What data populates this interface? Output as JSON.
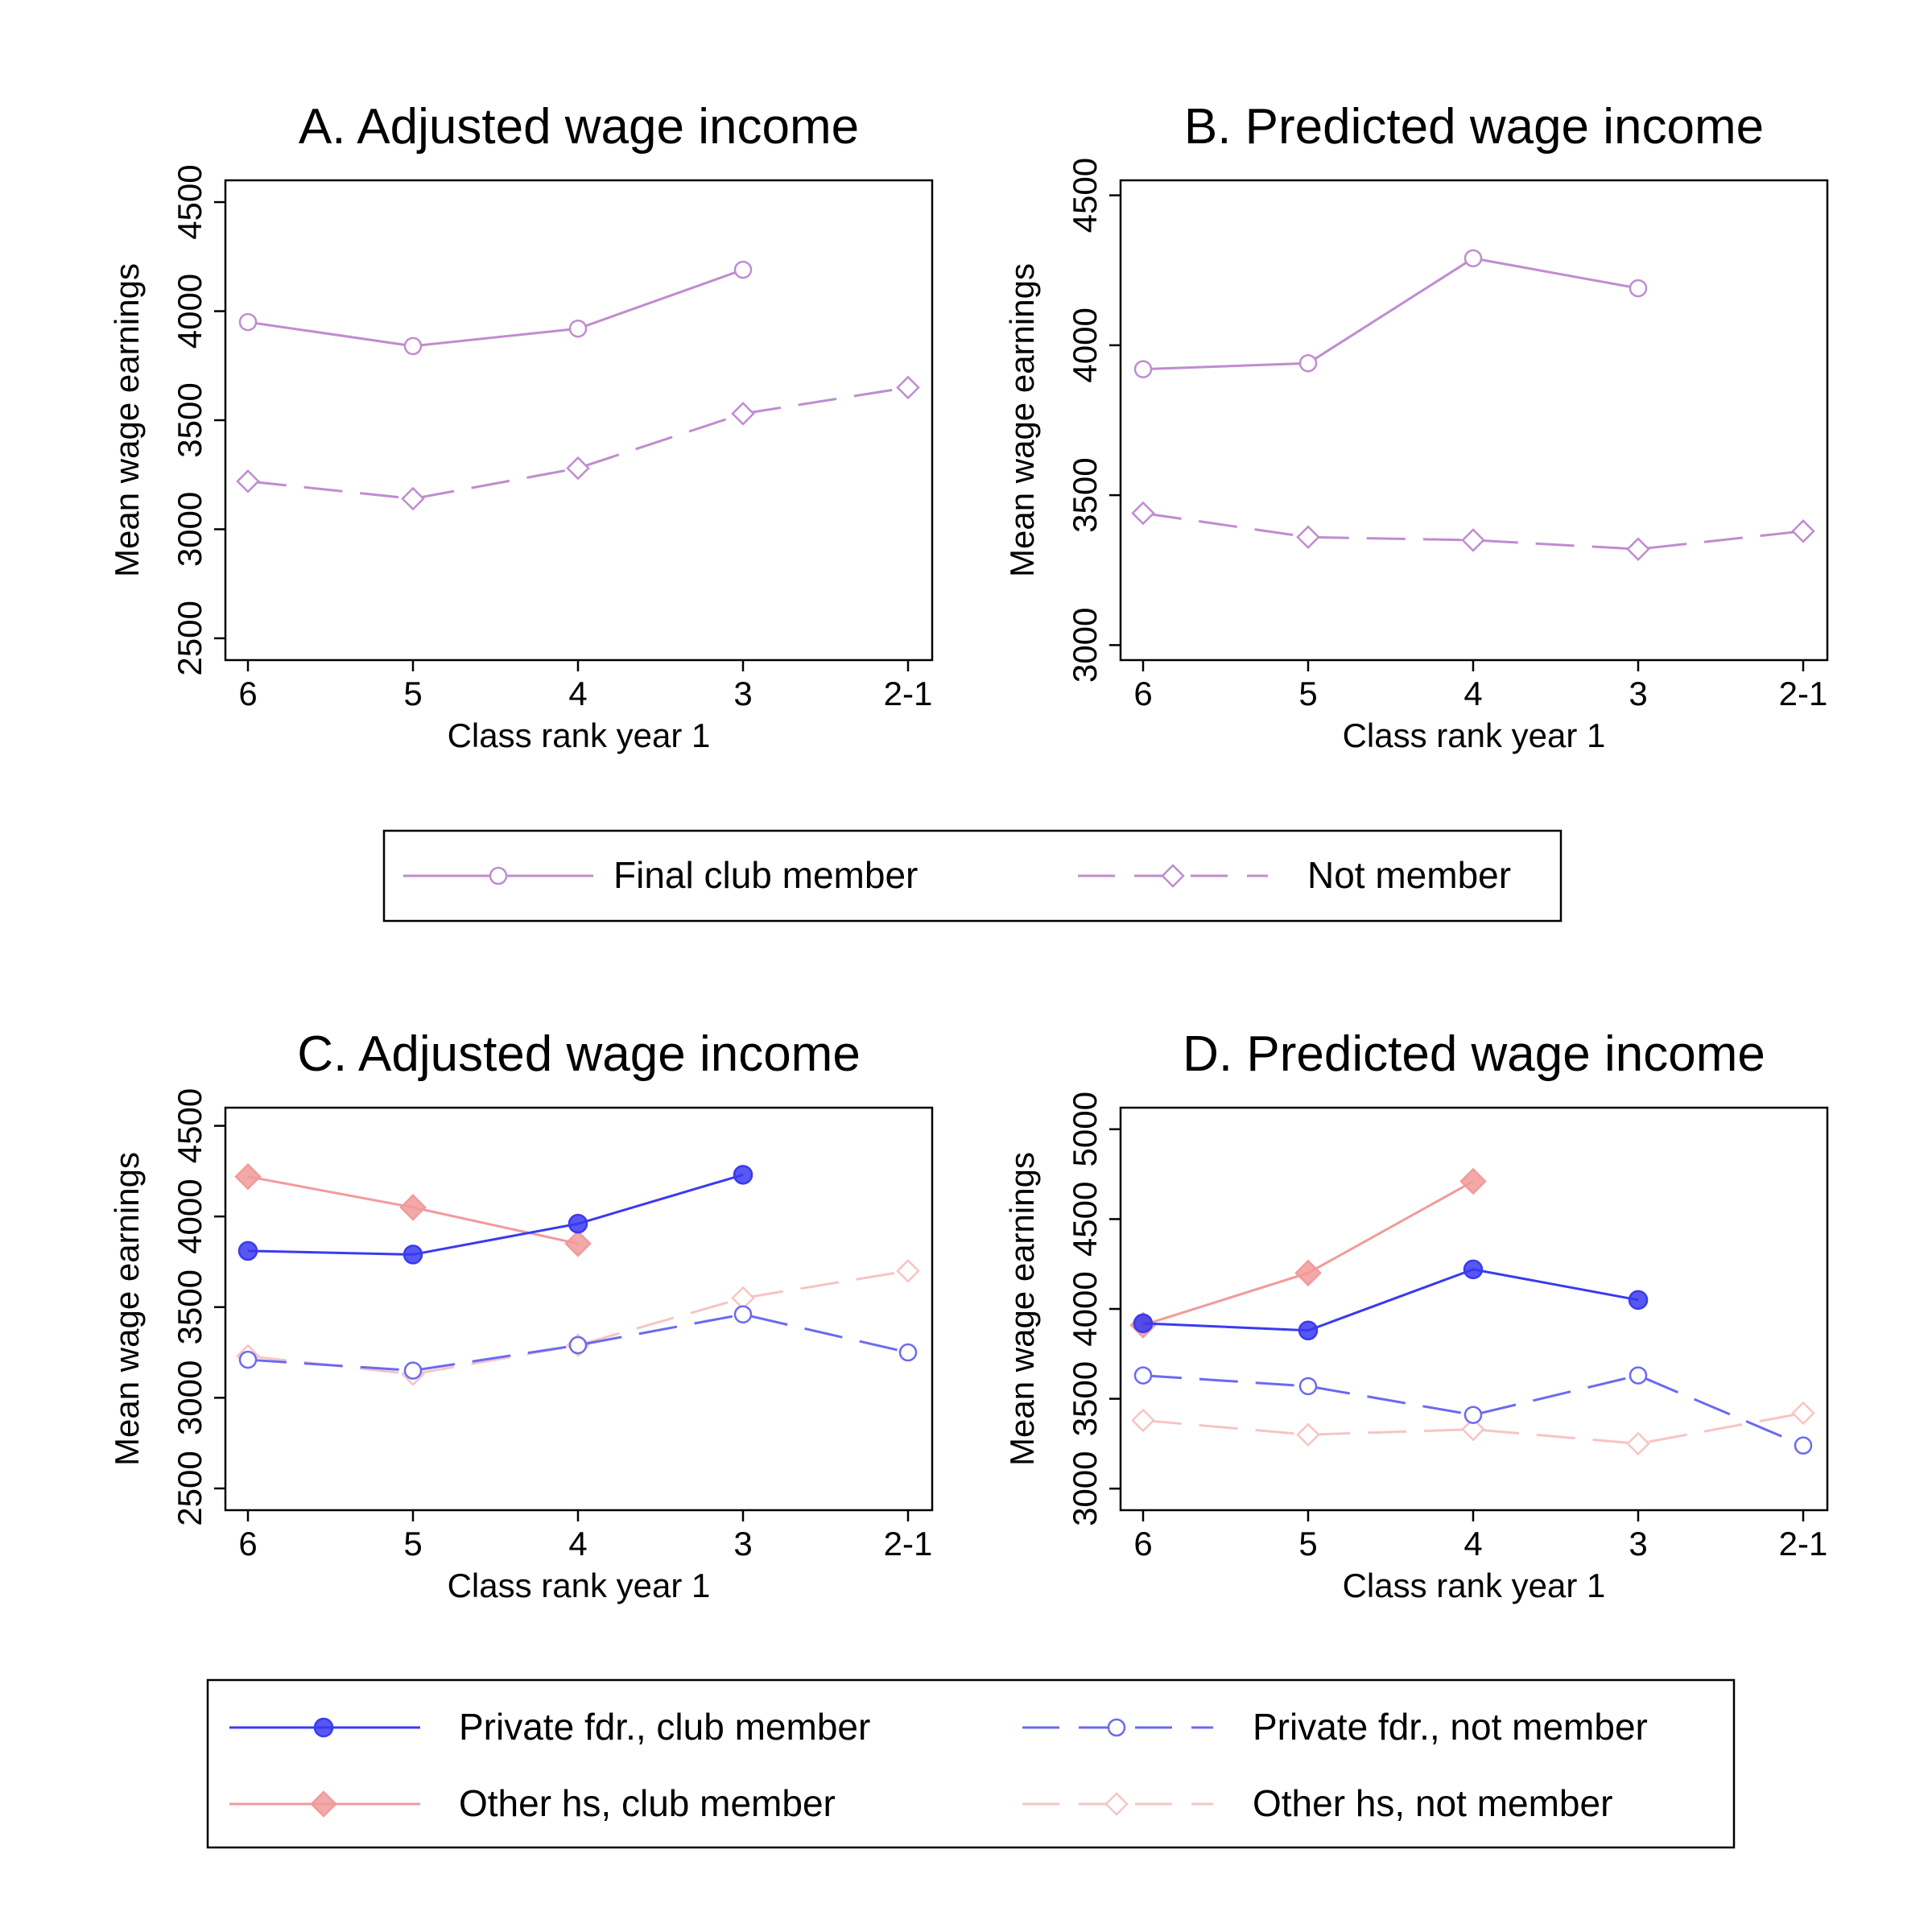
{
  "colors": {
    "purple": "#C08CD0",
    "blue": "#3A3AF0",
    "blue_light": "#6A6AF2",
    "pink": "#F29A9A",
    "pink_light": "#F8C4C4",
    "frame": "#000000"
  },
  "chart_data": [
    {
      "id": "A",
      "type": "line",
      "title": "A. Adjusted wage income",
      "xlabel": "Class rank year 1",
      "ylabel": "Mean wage earnings",
      "x_categories": [
        "6",
        "5",
        "4",
        "3",
        "2-1"
      ],
      "yticks": [
        "2500",
        "3000",
        "3500",
        "4000",
        "4500"
      ],
      "ylim": [
        2400,
        4600
      ],
      "series": [
        {
          "name": "Final club member",
          "marker": "circle-hollow",
          "dash": "solid",
          "color": "purple",
          "values": [
            3950,
            3840,
            3920,
            4190,
            null
          ]
        },
        {
          "name": "Not member",
          "marker": "diamond-hollow",
          "dash": "dashed",
          "color": "purple",
          "values": [
            3220,
            3140,
            3280,
            3530,
            3650
          ]
        }
      ]
    },
    {
      "id": "B",
      "type": "line",
      "title": "B. Predicted wage income",
      "xlabel": "Class rank year 1",
      "ylabel": "Mean wage earnings",
      "x_categories": [
        "6",
        "5",
        "4",
        "3",
        "2-1"
      ],
      "yticks": [
        "3000",
        "3500",
        "4000",
        "4500"
      ],
      "ylim": [
        2950,
        4550
      ],
      "series": [
        {
          "name": "Final club member",
          "marker": "circle-hollow",
          "dash": "solid",
          "color": "purple",
          "values": [
            3920,
            3940,
            4290,
            4190,
            null
          ]
        },
        {
          "name": "Not member",
          "marker": "diamond-hollow",
          "dash": "dashed",
          "color": "purple",
          "values": [
            3440,
            3360,
            3350,
            3320,
            3380
          ]
        }
      ]
    },
    {
      "id": "C",
      "type": "line",
      "title": "C. Adjusted wage income",
      "xlabel": "Class rank year 1",
      "ylabel": "Mean wage earnings",
      "x_categories": [
        "6",
        "5",
        "4",
        "3",
        "2-1"
      ],
      "yticks": [
        "2500",
        "3000",
        "3500",
        "4000",
        "4500"
      ],
      "ylim": [
        2380,
        4600
      ],
      "series": [
        {
          "name": "Other hs, club member",
          "marker": "diamond-filled",
          "dash": "solid",
          "color": "pink",
          "values": [
            4220,
            4050,
            3850,
            null,
            null
          ]
        },
        {
          "name": "Other hs, not member",
          "marker": "diamond-hollow",
          "dash": "dashed",
          "color": "pink_light",
          "values": [
            3230,
            3130,
            3290,
            3550,
            3700
          ]
        },
        {
          "name": "Private fdr., club member",
          "marker": "circle-filled",
          "dash": "solid",
          "color": "blue",
          "values": [
            3810,
            3790,
            3960,
            4230,
            null
          ]
        },
        {
          "name": "Private fdr., not member",
          "marker": "circle-hollow",
          "dash": "dashed",
          "color": "blue_light",
          "values": [
            3210,
            3150,
            3290,
            3460,
            3250
          ]
        }
      ]
    },
    {
      "id": "D",
      "type": "line",
      "title": "D. Predicted wage income",
      "xlabel": "Class rank year 1",
      "ylabel": "Mean wage earnings",
      "x_categories": [
        "6",
        "5",
        "4",
        "3",
        "2-1"
      ],
      "yticks": [
        "3000",
        "3500",
        "4000",
        "4500",
        "5000"
      ],
      "ylim": [
        2880,
        5120
      ],
      "series": [
        {
          "name": "Other hs, club member",
          "marker": "diamond-filled",
          "dash": "solid",
          "color": "pink",
          "values": [
            3910,
            4200,
            4710,
            null,
            null
          ]
        },
        {
          "name": "Other hs, not member",
          "marker": "diamond-hollow",
          "dash": "dashed",
          "color": "pink_light",
          "values": [
            3380,
            3300,
            3330,
            3250,
            3420
          ]
        },
        {
          "name": "Private fdr., club member",
          "marker": "circle-filled",
          "dash": "solid",
          "color": "blue",
          "values": [
            3920,
            3880,
            4220,
            4050,
            null
          ]
        },
        {
          "name": "Private fdr., not member",
          "marker": "circle-hollow",
          "dash": "dashed",
          "color": "blue_light",
          "values": [
            3630,
            3570,
            3410,
            3630,
            3240
          ]
        }
      ]
    }
  ],
  "legends": [
    {
      "id": "legend-top",
      "items": [
        {
          "label": "Final club member",
          "marker": "circle-hollow",
          "dash": "solid",
          "color": "purple"
        },
        {
          "label": "Not member",
          "marker": "diamond-hollow",
          "dash": "dashed",
          "color": "purple"
        }
      ]
    },
    {
      "id": "legend-bottom",
      "items": [
        {
          "label": "Private fdr., club member",
          "marker": "circle-filled",
          "dash": "solid",
          "color": "blue"
        },
        {
          "label": "Private fdr., not member",
          "marker": "circle-hollow",
          "dash": "dashed",
          "color": "blue_light"
        },
        {
          "label": "Other hs, club member",
          "marker": "diamond-filled",
          "dash": "solid",
          "color": "pink"
        },
        {
          "label": "Other hs, not member",
          "marker": "diamond-hollow",
          "dash": "dashed",
          "color": "pink_light"
        }
      ]
    }
  ]
}
